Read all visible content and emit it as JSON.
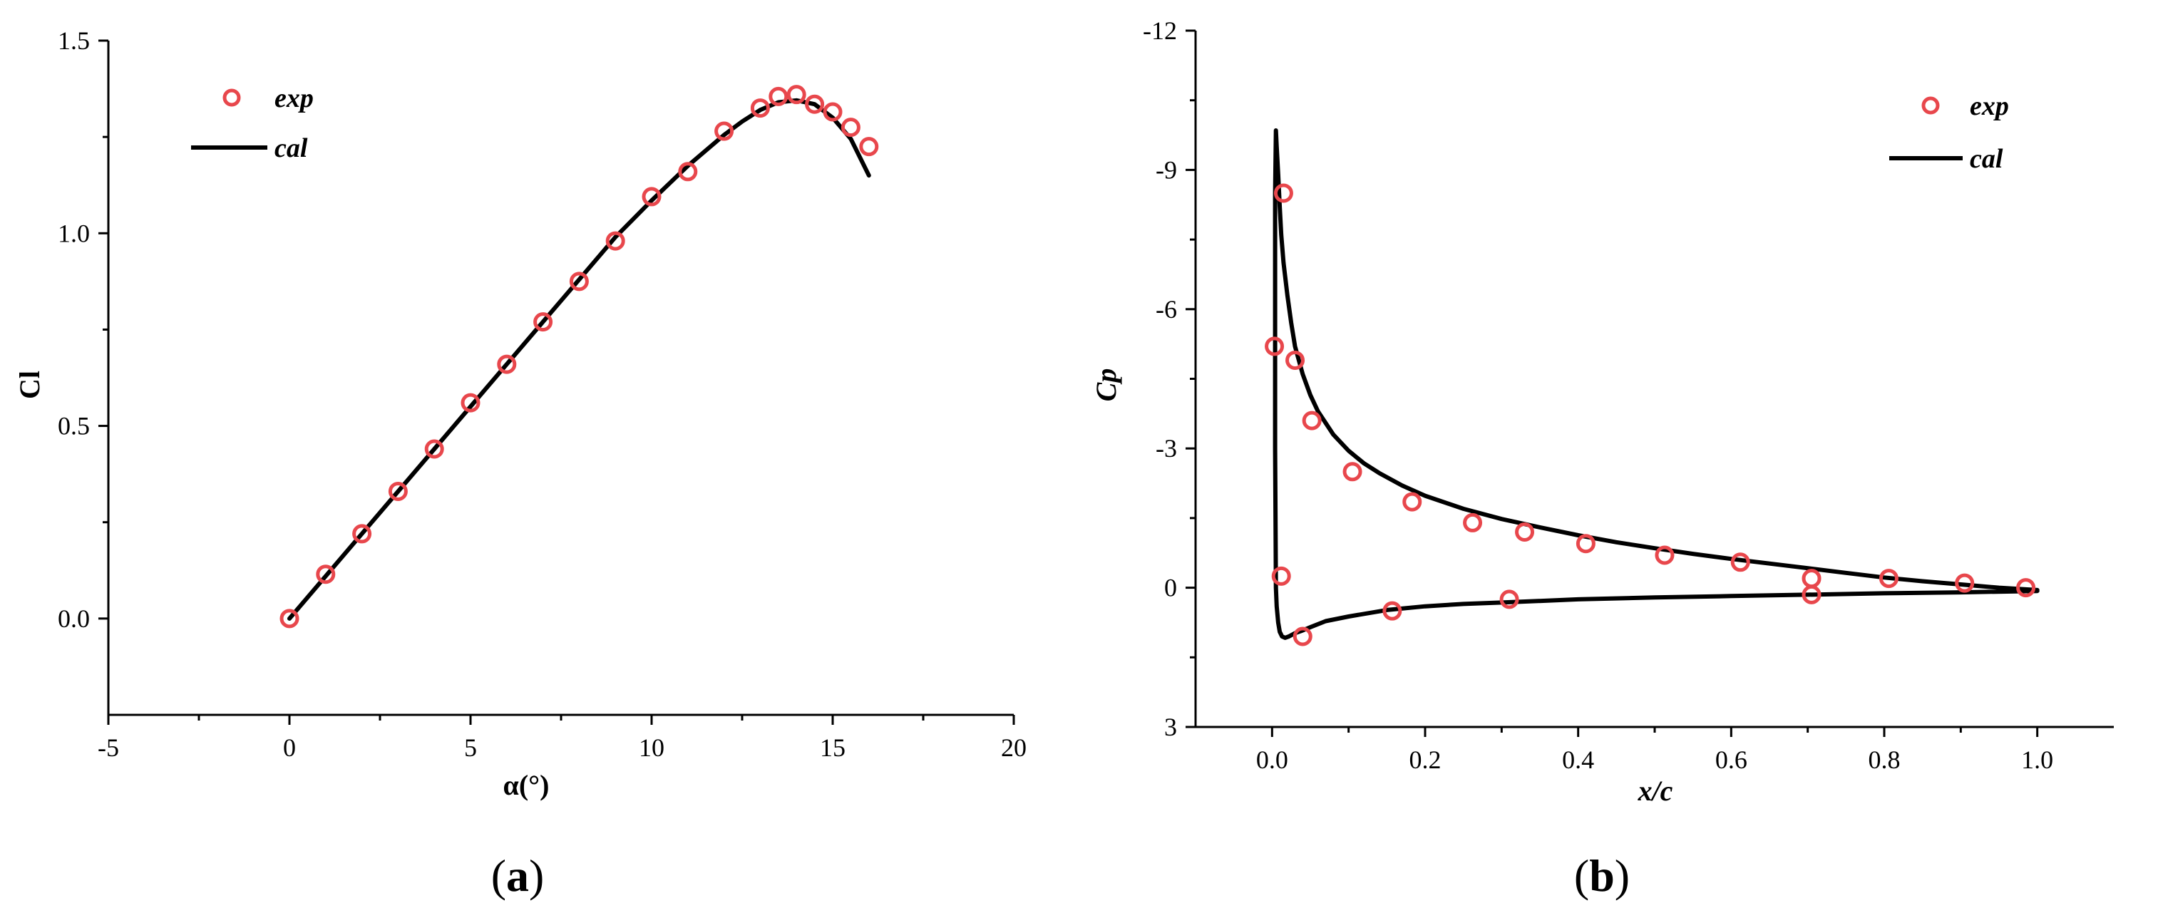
{
  "colors": {
    "exp_marker": "#e8474c",
    "cal_line": "#000000",
    "axis": "#000000",
    "background": "#ffffff"
  },
  "chart_data": [
    {
      "type": "line",
      "panel_label_parts": [
        "(",
        "a",
        ")"
      ],
      "xlabel": "α(°)",
      "ylabel": "Cl",
      "xlim": [
        -5,
        20
      ],
      "ylim": [
        -0.25,
        1.5
      ],
      "x_ticks": [
        -5,
        0,
        5,
        10,
        15,
        20
      ],
      "x_tick_labels": [
        "-5",
        "0",
        "5",
        "10",
        "15",
        "20"
      ],
      "y_ticks": [
        0.0,
        0.5,
        1.0,
        1.5
      ],
      "y_tick_labels": [
        "0.0",
        "0.5",
        "1.0",
        "1.5"
      ],
      "grid": false,
      "legend_position": "top-left",
      "series": [
        {
          "name": "exp",
          "kind": "scatter",
          "x": [
            0,
            1,
            2,
            3,
            4,
            5,
            6,
            7,
            8,
            9,
            10,
            11,
            12,
            13,
            13.5,
            14,
            14.5,
            15,
            15.5,
            16
          ],
          "y": [
            0.0,
            0.115,
            0.22,
            0.33,
            0.44,
            0.56,
            0.66,
            0.77,
            0.875,
            0.98,
            1.095,
            1.16,
            1.265,
            1.325,
            1.355,
            1.36,
            1.335,
            1.315,
            1.275,
            1.225
          ]
        },
        {
          "name": "cal",
          "kind": "line",
          "x": [
            0,
            1,
            2,
            3,
            4,
            5,
            6,
            7,
            8,
            9,
            10,
            11,
            12,
            12.5,
            13,
            13.5,
            14,
            14.5,
            15,
            15.5,
            16
          ],
          "y": [
            0.0,
            0.11,
            0.22,
            0.33,
            0.44,
            0.55,
            0.66,
            0.77,
            0.88,
            0.99,
            1.085,
            1.175,
            1.255,
            1.29,
            1.32,
            1.34,
            1.345,
            1.335,
            1.3,
            1.245,
            1.15
          ]
        }
      ]
    },
    {
      "type": "line",
      "panel_label_parts": [
        "(",
        "b",
        ")"
      ],
      "xlabel": "x/c",
      "ylabel": "Cp",
      "xlim": [
        -0.1,
        1.1
      ],
      "ylim": [
        3,
        -12
      ],
      "y_inverted": true,
      "x_ticks": [
        0.0,
        0.2,
        0.4,
        0.6,
        0.8,
        1.0
      ],
      "x_tick_labels": [
        "0.0",
        "0.2",
        "0.4",
        "0.6",
        "0.8",
        "1.0"
      ],
      "y_ticks": [
        -12,
        -9,
        -6,
        -3,
        0,
        3
      ],
      "y_tick_labels": [
        "-12",
        "-9",
        "-6",
        "-3",
        "0",
        "3"
      ],
      "grid": false,
      "legend_position": "top-right",
      "series": [
        {
          "name": "exp",
          "kind": "scatter",
          "x": [
            0.015,
            0.003,
            0.03,
            0.052,
            0.105,
            0.183,
            0.262,
            0.33,
            0.41,
            0.513,
            0.612,
            0.705,
            0.806,
            0.905,
            0.985,
            0.012,
            0.04,
            0.157,
            0.31,
            0.705
          ],
          "y": [
            -8.5,
            -5.2,
            -4.9,
            -3.6,
            -2.5,
            -1.85,
            -1.4,
            -1.2,
            -0.95,
            -0.7,
            -0.55,
            -0.2,
            -0.2,
            -0.1,
            0.0,
            -0.25,
            1.05,
            0.5,
            0.25,
            0.15
          ]
        },
        {
          "name": "cal",
          "kind": "line",
          "x": [
            1.0,
            0.95,
            0.9,
            0.85,
            0.8,
            0.75,
            0.7,
            0.65,
            0.6,
            0.55,
            0.5,
            0.45,
            0.4,
            0.35,
            0.3,
            0.25,
            0.2,
            0.17,
            0.14,
            0.12,
            0.1,
            0.08,
            0.06,
            0.05,
            0.04,
            0.03,
            0.025,
            0.02,
            0.015,
            0.012,
            0.01,
            0.008,
            0.006,
            0.005,
            0.004,
            0.004,
            0.005,
            0.006,
            0.008,
            0.01,
            0.013,
            0.017,
            0.022,
            0.03,
            0.04,
            0.05,
            0.07,
            0.1,
            0.15,
            0.2,
            0.25,
            0.3,
            0.4,
            0.5,
            0.6,
            0.7,
            0.8,
            0.9,
            1.0
          ],
          "y": [
            0.05,
            0.0,
            -0.07,
            -0.14,
            -0.22,
            -0.32,
            -0.42,
            -0.52,
            -0.62,
            -0.73,
            -0.85,
            -0.98,
            -1.13,
            -1.3,
            -1.48,
            -1.7,
            -1.98,
            -2.2,
            -2.47,
            -2.68,
            -2.95,
            -3.3,
            -3.8,
            -4.15,
            -4.6,
            -5.2,
            -5.7,
            -6.3,
            -7.0,
            -7.6,
            -8.2,
            -8.9,
            -9.5,
            -9.85,
            -8.5,
            -3.0,
            0.0,
            0.4,
            0.75,
            0.95,
            1.05,
            1.08,
            1.05,
            0.98,
            0.92,
            0.85,
            0.72,
            0.62,
            0.48,
            0.4,
            0.35,
            0.32,
            0.25,
            0.21,
            0.18,
            0.15,
            0.12,
            0.1,
            0.07
          ]
        }
      ]
    }
  ]
}
